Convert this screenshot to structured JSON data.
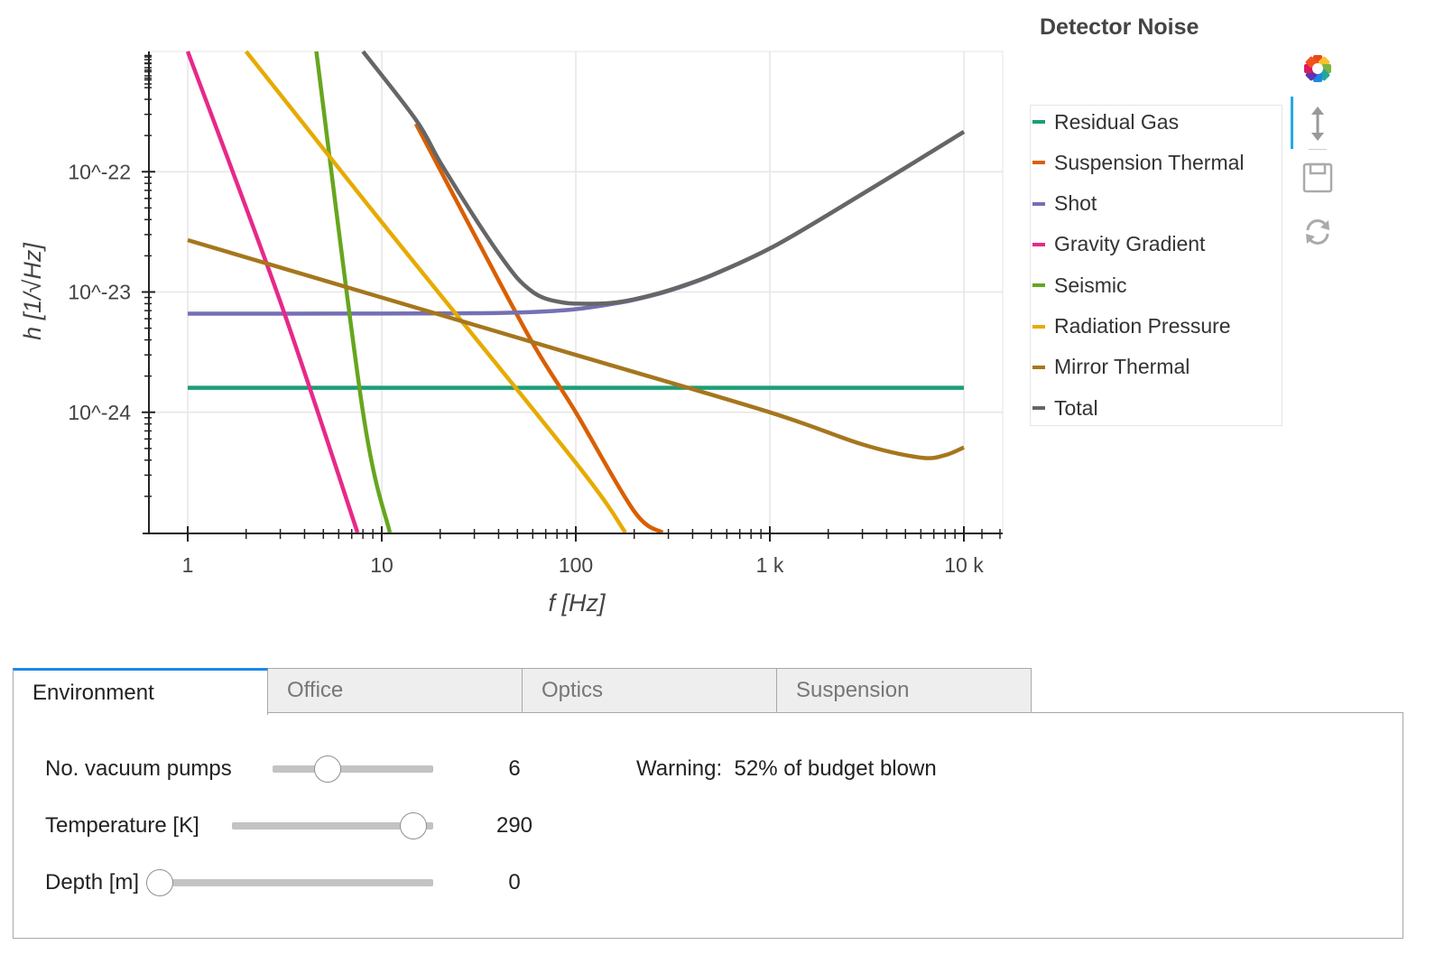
{
  "chart_data": {
    "type": "line",
    "title": "Detector Noise",
    "xlabel": "f [Hz]",
    "ylabel": "h [1/√Hz]",
    "xscale": "log",
    "yscale": "log",
    "xlim": [
      1,
      10000
    ],
    "ylim": [
      1e-25,
      1e-21
    ],
    "xticks": [
      {
        "value": 1,
        "label": "1"
      },
      {
        "value": 10,
        "label": "10"
      },
      {
        "value": 100,
        "label": "100"
      },
      {
        "value": 1000,
        "label": "1 k"
      },
      {
        "value": 10000,
        "label": "10 k"
      }
    ],
    "yticks": [
      {
        "value": 1e-22,
        "label": "10^-22"
      },
      {
        "value": 1e-23,
        "label": "10^-23"
      },
      {
        "value": 1e-24,
        "label": "10^-24"
      }
    ],
    "grid": true,
    "legend_position": "right",
    "series": [
      {
        "name": "Residual Gas",
        "color": "#1b9e77",
        "x": [
          1,
          10000
        ],
        "y": [
          1.6e-24,
          1.6e-24
        ]
      },
      {
        "name": "Suspension Thermal",
        "color": "#d95f02",
        "x": [
          15,
          30,
          60,
          100,
          200,
          280
        ],
        "y": [
          2.5e-22,
          3e-23,
          3.75e-24,
          1e-24,
          1.5e-25,
          1e-25
        ]
      },
      {
        "name": "Shot",
        "color": "#7570b3",
        "x": [
          1,
          10,
          30,
          50,
          70,
          100,
          150,
          200,
          300,
          500,
          1000,
          2000,
          5000,
          10000
        ],
        "y": [
          6.6e-24,
          6.62e-24,
          6.66e-24,
          6.75e-24,
          6.9e-24,
          7.2e-24,
          7.9e-24,
          8.6e-24,
          1.02e-23,
          1.37e-23,
          2.3e-23,
          4.4e-23,
          1.08e-22,
          2.15e-22
        ]
      },
      {
        "name": "Gravity Gradient",
        "color": "#e7298a",
        "x": [
          1,
          3,
          7.5
        ],
        "y": [
          1e-21,
          8.3e-24,
          1e-25
        ]
      },
      {
        "name": "Seismic",
        "color": "#66a61e",
        "x": [
          4.6,
          8,
          11
        ],
        "y": [
          1e-21,
          1e-24,
          1e-25
        ]
      },
      {
        "name": "Radiation Pressure",
        "color": "#e6ab02",
        "x": [
          2,
          10,
          100,
          180
        ],
        "y": [
          1e-21,
          3.8e-23,
          3.8e-25,
          1e-25
        ]
      },
      {
        "name": "Mirror Thermal",
        "color": "#a6761d",
        "x": [
          1,
          10,
          100,
          1000,
          3000,
          6000,
          8000,
          10000
        ],
        "y": [
          2.7e-23,
          9e-24,
          3e-24,
          1e-24,
          5.4e-25,
          4.2e-25,
          4.4e-25,
          5.1e-25
        ]
      },
      {
        "name": "Total",
        "color": "#666666",
        "x": [
          8,
          15,
          20,
          30,
          40,
          50,
          60,
          70,
          85,
          100,
          150,
          200,
          300,
          500,
          1000,
          2000,
          5000,
          10000
        ],
        "y": [
          1e-21,
          2.7e-22,
          1.2e-22,
          4.2e-23,
          2.1e-23,
          1.3e-23,
          1e-23,
          8.8e-24,
          8.2e-24,
          8e-24,
          8.1e-24,
          8.7e-24,
          1.03e-23,
          1.38e-23,
          2.3e-23,
          4.4e-23,
          1.08e-22,
          2.15e-22
        ]
      }
    ]
  },
  "toolbar": {
    "logo_icon": "bokeh-logo-icon",
    "tools": [
      "vertical-pan-icon",
      "save-icon",
      "reset-icon"
    ]
  },
  "tabs": [
    "Environment",
    "Office",
    "Optics",
    "Suspension"
  ],
  "active_tab": "Environment",
  "controls": [
    {
      "label": "No. vacuum pumps",
      "value": "6",
      "fraction": 0.34
    },
    {
      "label": "Temperature [K]",
      "value": "290",
      "fraction": 0.9
    },
    {
      "label": "Depth [m]",
      "value": "0",
      "fraction": 0.0
    }
  ],
  "warning": {
    "prefix": "Warning:",
    "text": "52% of budget blown"
  }
}
